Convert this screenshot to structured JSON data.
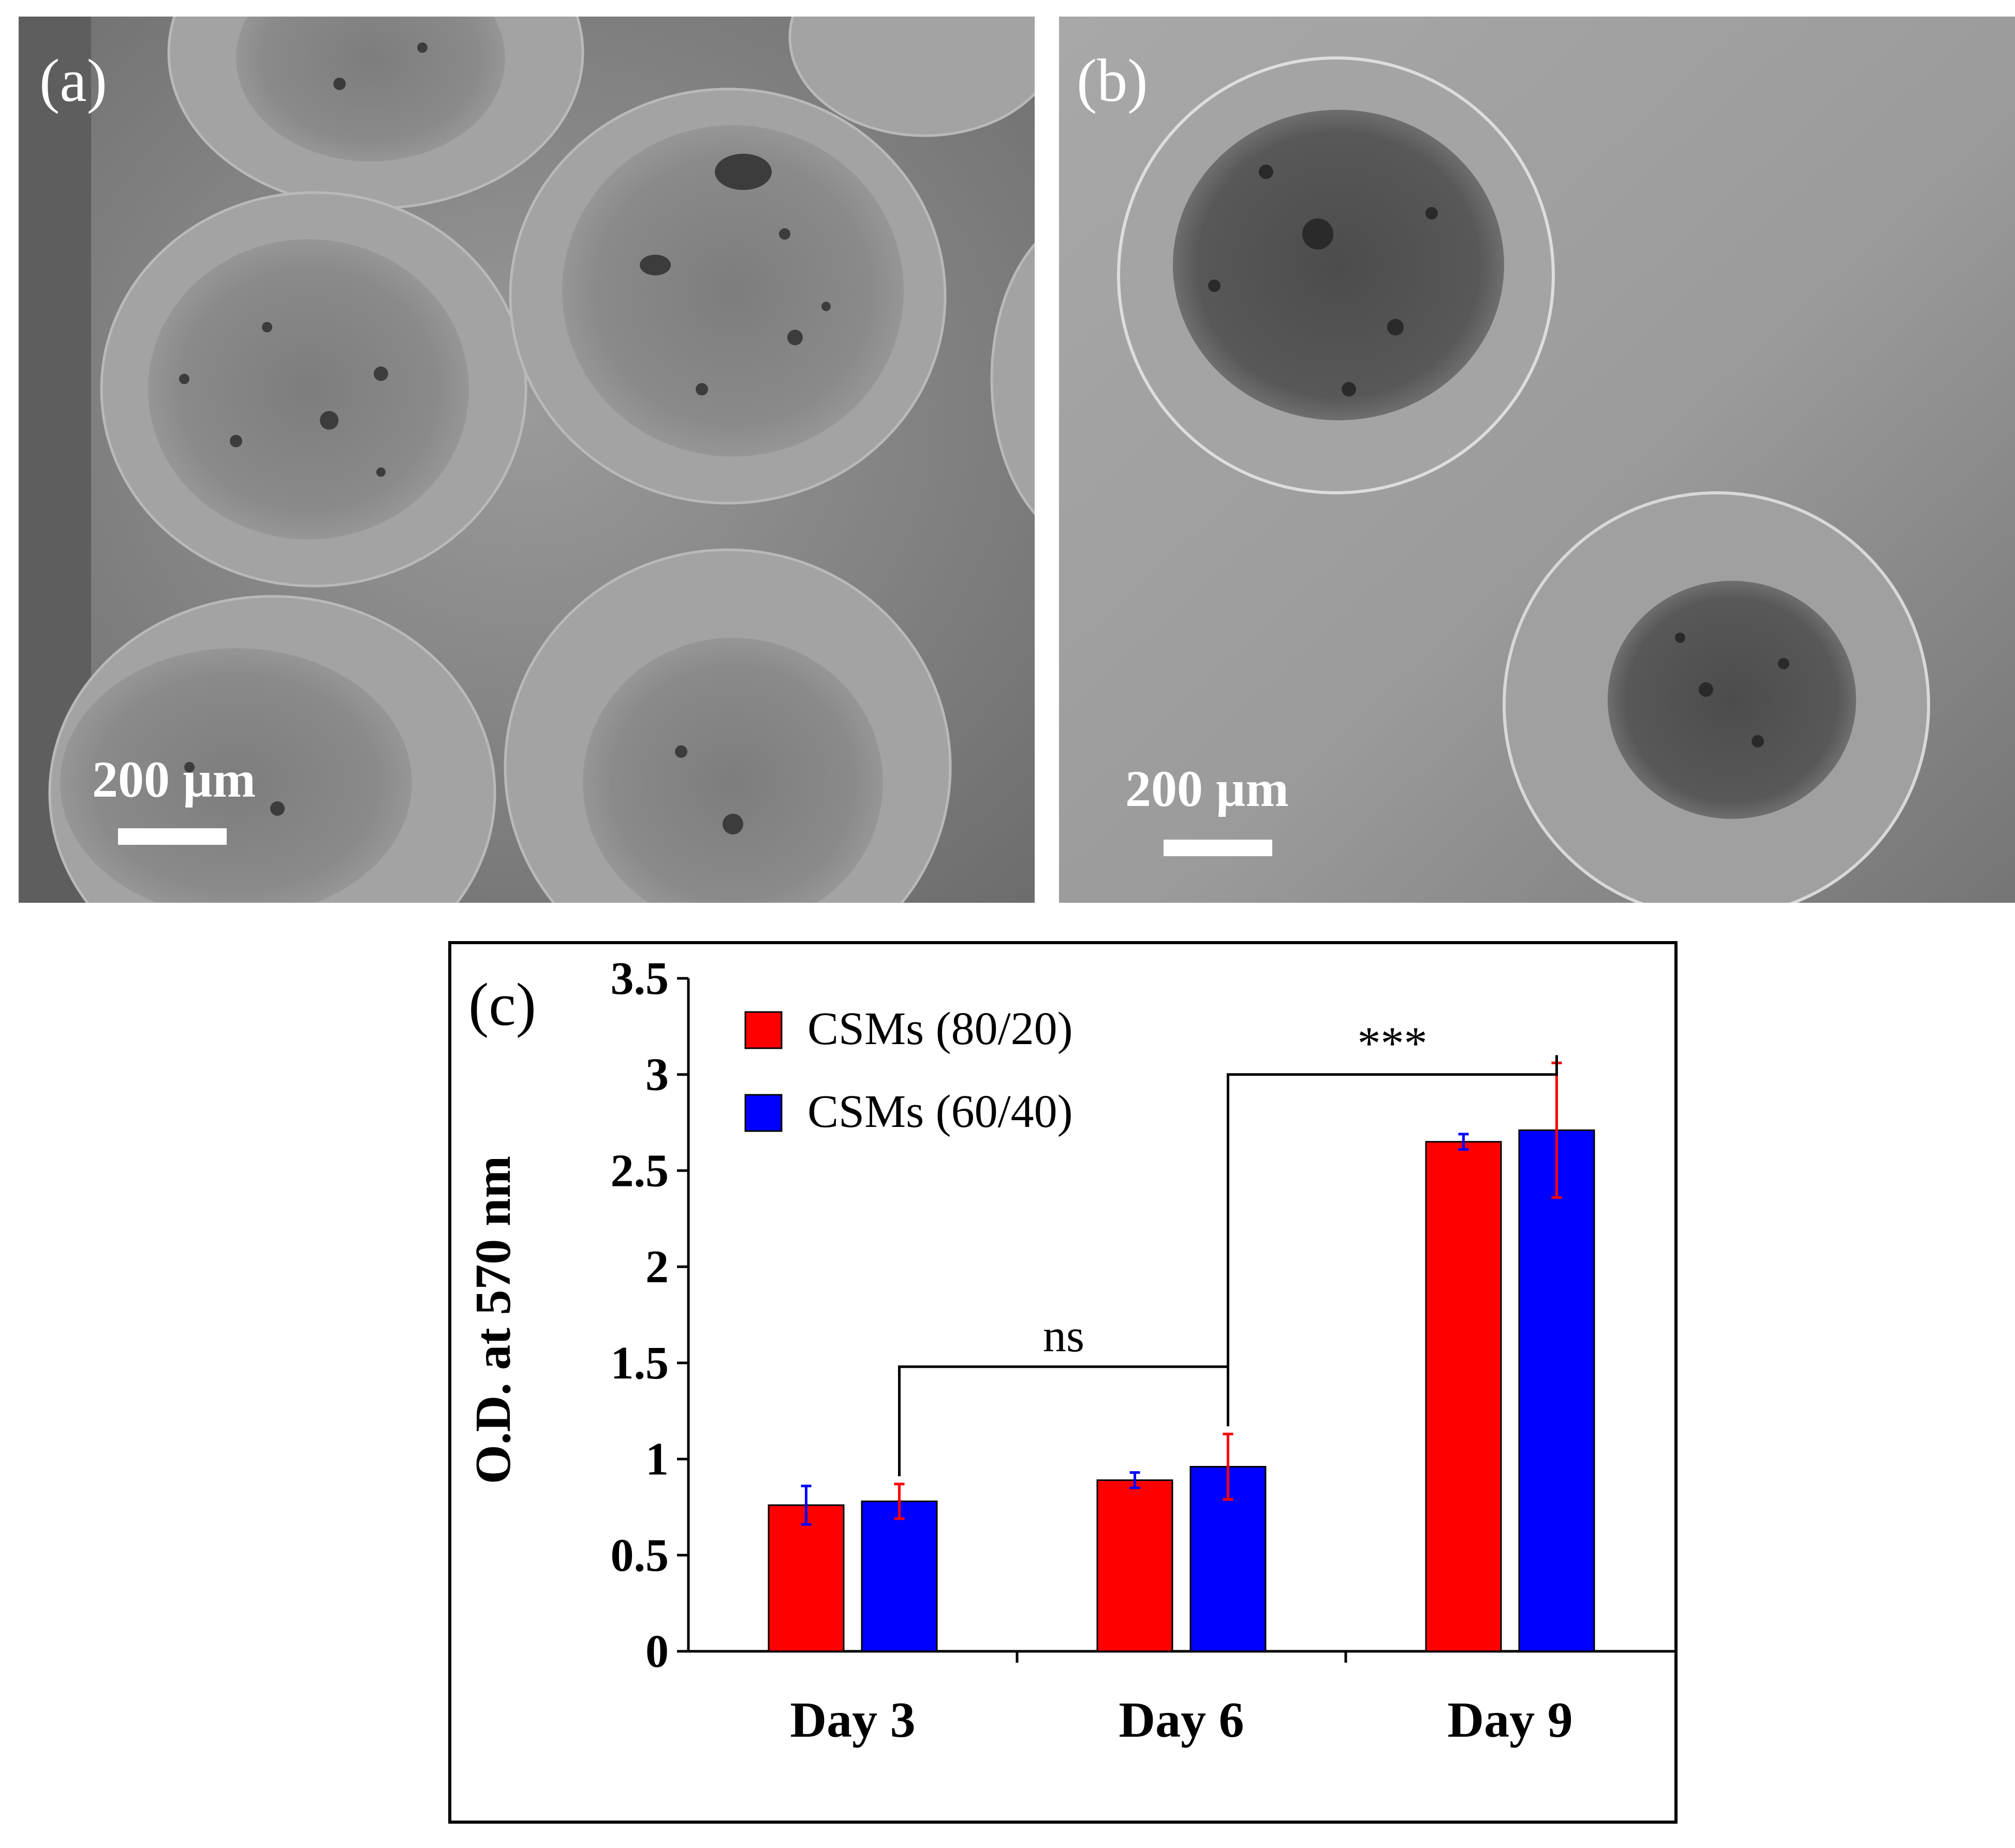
{
  "panels": {
    "a": {
      "letter": "(a)",
      "scale_label": "200 µm"
    },
    "b": {
      "letter": "(b)",
      "scale_label": "200 µm"
    }
  },
  "chart_data": {
    "type": "bar",
    "panel_letter": "(c)",
    "title": "",
    "xlabel": "",
    "ylabel": "O.D. at 570 nm",
    "categories": [
      "Day 3",
      "Day 6",
      "Day 9"
    ],
    "ylim": [
      0,
      3.5
    ],
    "yticks": [
      "0",
      "0.5",
      "1",
      "1.5",
      "2",
      "2.5",
      "3",
      "3.5"
    ],
    "ytick_values": [
      0,
      0.5,
      1,
      1.5,
      2,
      2.5,
      3,
      3.5
    ],
    "legend_position": "top-left",
    "series": [
      {
        "name": "CSMs (80/20)",
        "color": "#ff0000",
        "error_color": "#0000ff",
        "values": [
          0.76,
          0.89,
          2.65
        ],
        "errors": [
          0.1,
          0.04,
          0.04
        ]
      },
      {
        "name": "CSMs (60/40)",
        "color": "#0000ff",
        "error_color": "#ff0000",
        "values": [
          0.78,
          0.96,
          2.71
        ],
        "errors": [
          0.09,
          0.17,
          0.35
        ]
      }
    ],
    "annotations": [
      {
        "text": "ns",
        "from": "Day 3",
        "to": "Day 6",
        "bracket_y": 1.48
      },
      {
        "text": "***",
        "from": "Day 6",
        "to": "Day 9",
        "bracket_y": 3.0
      }
    ]
  }
}
